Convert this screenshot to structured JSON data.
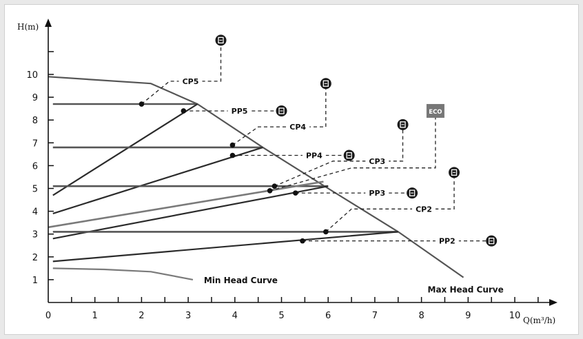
{
  "colors": {
    "line_dark": "#2b2b2b",
    "line_mid": "#555555",
    "line_light": "#7a7a7a",
    "eco_badge": "#777777",
    "axis": "#111111"
  },
  "icons": {
    "marker": "mode-badge-icon",
    "eco": "eco-badge-icon"
  },
  "chart_data": {
    "type": "line",
    "xlabel": "Q(m³/h)",
    "ylabel": "H(m)",
    "xlim": [
      0,
      10.6
    ],
    "ylim": [
      0,
      11.5
    ],
    "x_ticks": [
      0,
      1,
      2,
      3,
      4,
      5,
      6,
      7,
      8,
      9,
      10
    ],
    "y_ticks": [
      1,
      2,
      3,
      4,
      5,
      6,
      7,
      8,
      9,
      10
    ],
    "grid": false,
    "curves": [
      {
        "name": "Max Head Curve",
        "label": "Max Head Curve",
        "points": [
          [
            0,
            9.9
          ],
          [
            2.2,
            9.6
          ],
          [
            3.2,
            8.7
          ],
          [
            4.6,
            6.8
          ],
          [
            6.0,
            5.0
          ],
          [
            7.5,
            3.1
          ],
          [
            8.9,
            1.1
          ]
        ]
      },
      {
        "name": "Min Head Curve",
        "label": "Min Head Curve",
        "points": [
          [
            0.1,
            1.5
          ],
          [
            1.2,
            1.45
          ],
          [
            2.2,
            1.35
          ],
          [
            3.1,
            1.0
          ]
        ]
      },
      {
        "name": "PP5",
        "points": [
          [
            0.1,
            8.7
          ],
          [
            3.2,
            8.7
          ]
        ]
      },
      {
        "name": "CP5",
        "points": [
          [
            0.1,
            4.7
          ],
          [
            3.2,
            8.7
          ]
        ]
      },
      {
        "name": "PP4",
        "points": [
          [
            0.1,
            6.8
          ],
          [
            4.6,
            6.8
          ]
        ]
      },
      {
        "name": "CP4",
        "points": [
          [
            0.1,
            3.9
          ],
          [
            4.6,
            6.8
          ]
        ]
      },
      {
        "name": "PP3",
        "points": [
          [
            0.1,
            5.1
          ],
          [
            6.0,
            5.1
          ]
        ]
      },
      {
        "name": "CP3",
        "points": [
          [
            0.1,
            2.8
          ],
          [
            6.0,
            5.1
          ]
        ]
      },
      {
        "name": "ECO",
        "points": [
          [
            0,
            3.3
          ],
          [
            5.9,
            5.3
          ]
        ]
      },
      {
        "name": "PP2",
        "points": [
          [
            0.1,
            3.1
          ],
          [
            7.5,
            3.1
          ]
        ]
      },
      {
        "name": "CP2",
        "points": [
          [
            0.1,
            1.8
          ],
          [
            7.5,
            3.1
          ]
        ]
      }
    ],
    "callouts": [
      {
        "label": "CP5",
        "point": [
          2.0,
          8.7
        ],
        "path": [
          [
            2.0,
            8.7
          ],
          [
            2.6,
            9.7
          ],
          [
            3.7,
            9.7
          ],
          [
            3.7,
            11.3
          ]
        ],
        "text_at": [
          3.05,
          9.7
        ],
        "badge_at": [
          3.7,
          11.5
        ],
        "badge": "marker"
      },
      {
        "label": "PP5",
        "point": [
          2.9,
          8.4
        ],
        "path": [
          [
            2.9,
            8.4
          ],
          [
            4.9,
            8.4
          ]
        ],
        "text_at": [
          4.1,
          8.4
        ],
        "badge_at": [
          5.0,
          8.4
        ],
        "badge": "marker"
      },
      {
        "label": "CP4",
        "point": [
          3.95,
          6.9
        ],
        "path": [
          [
            3.95,
            6.9
          ],
          [
            4.5,
            7.7
          ],
          [
            5.95,
            7.7
          ],
          [
            5.95,
            9.4
          ]
        ],
        "text_at": [
          5.35,
          7.7
        ],
        "badge_at": [
          5.95,
          9.6
        ],
        "badge": "marker"
      },
      {
        "label": "PP4",
        "point": [
          3.95,
          6.45
        ],
        "path": [
          [
            3.95,
            6.45
          ],
          [
            6.4,
            6.45
          ]
        ],
        "text_at": [
          5.7,
          6.45
        ],
        "badge_at": [
          6.45,
          6.45
        ],
        "badge": "marker"
      },
      {
        "label": "CP3",
        "point": [
          4.85,
          5.1
        ],
        "path": [
          [
            4.85,
            5.1
          ],
          [
            6.1,
            6.2
          ],
          [
            7.6,
            6.2
          ],
          [
            7.6,
            7.6
          ]
        ],
        "text_at": [
          7.05,
          6.2
        ],
        "badge_at": [
          7.6,
          7.8
        ],
        "badge": "marker"
      },
      {
        "label": "ECO",
        "point": [
          4.75,
          4.9
        ],
        "path": [
          [
            4.75,
            4.9
          ],
          [
            6.5,
            5.9
          ],
          [
            8.3,
            5.9
          ],
          [
            8.3,
            8.2
          ]
        ],
        "text_at": null,
        "badge_at": [
          8.3,
          8.4
        ],
        "badge": "eco"
      },
      {
        "label": "PP3",
        "point": [
          5.3,
          4.8
        ],
        "path": [
          [
            5.3,
            4.8
          ],
          [
            7.75,
            4.8
          ]
        ],
        "text_at": [
          7.05,
          4.8
        ],
        "badge_at": [
          7.8,
          4.8
        ],
        "badge": "marker"
      },
      {
        "label": "CP2",
        "point": [
          5.95,
          3.1
        ],
        "path": [
          [
            5.95,
            3.1
          ],
          [
            6.5,
            4.1
          ],
          [
            8.7,
            4.1
          ],
          [
            8.7,
            5.5
          ]
        ],
        "text_at": [
          8.05,
          4.1
        ],
        "badge_at": [
          8.7,
          5.7
        ],
        "badge": "marker"
      },
      {
        "label": "PP2",
        "point": [
          5.45,
          2.7
        ],
        "path": [
          [
            5.45,
            2.7
          ],
          [
            9.4,
            2.7
          ]
        ],
        "text_at": [
          8.55,
          2.7
        ],
        "badge_at": [
          9.5,
          2.7
        ],
        "badge": "marker"
      }
    ],
    "eco_badge_text": "ECO"
  }
}
